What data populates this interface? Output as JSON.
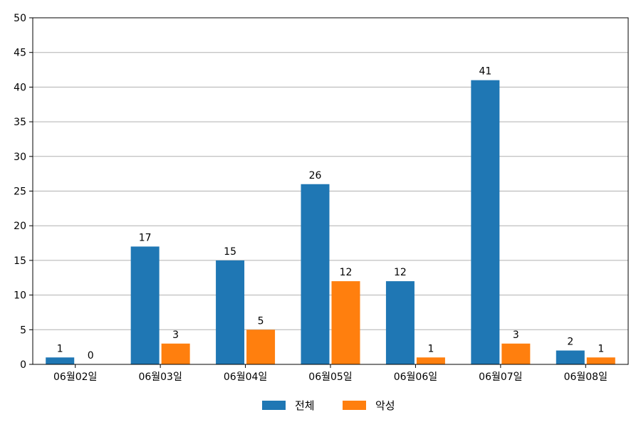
{
  "chart_data": {
    "type": "bar",
    "categories": [
      "06월02일",
      "06월03일",
      "06월04일",
      "06월05일",
      "06월06일",
      "06월07일",
      "06월08일"
    ],
    "series": [
      {
        "name": "전체",
        "values": [
          1,
          17,
          15,
          26,
          12,
          41,
          2
        ],
        "color": "#1f77b4"
      },
      {
        "name": "악성",
        "values": [
          0,
          3,
          5,
          12,
          1,
          3,
          1
        ],
        "color": "#ff7f0e"
      }
    ],
    "title": "",
    "xlabel": "",
    "ylabel": "",
    "ylim": [
      0,
      50
    ],
    "yticks": [
      0,
      5,
      10,
      15,
      20,
      25,
      30,
      35,
      40,
      45,
      50
    ],
    "grid": "horizontal",
    "legend": "bottom-center",
    "data_labels": true
  }
}
